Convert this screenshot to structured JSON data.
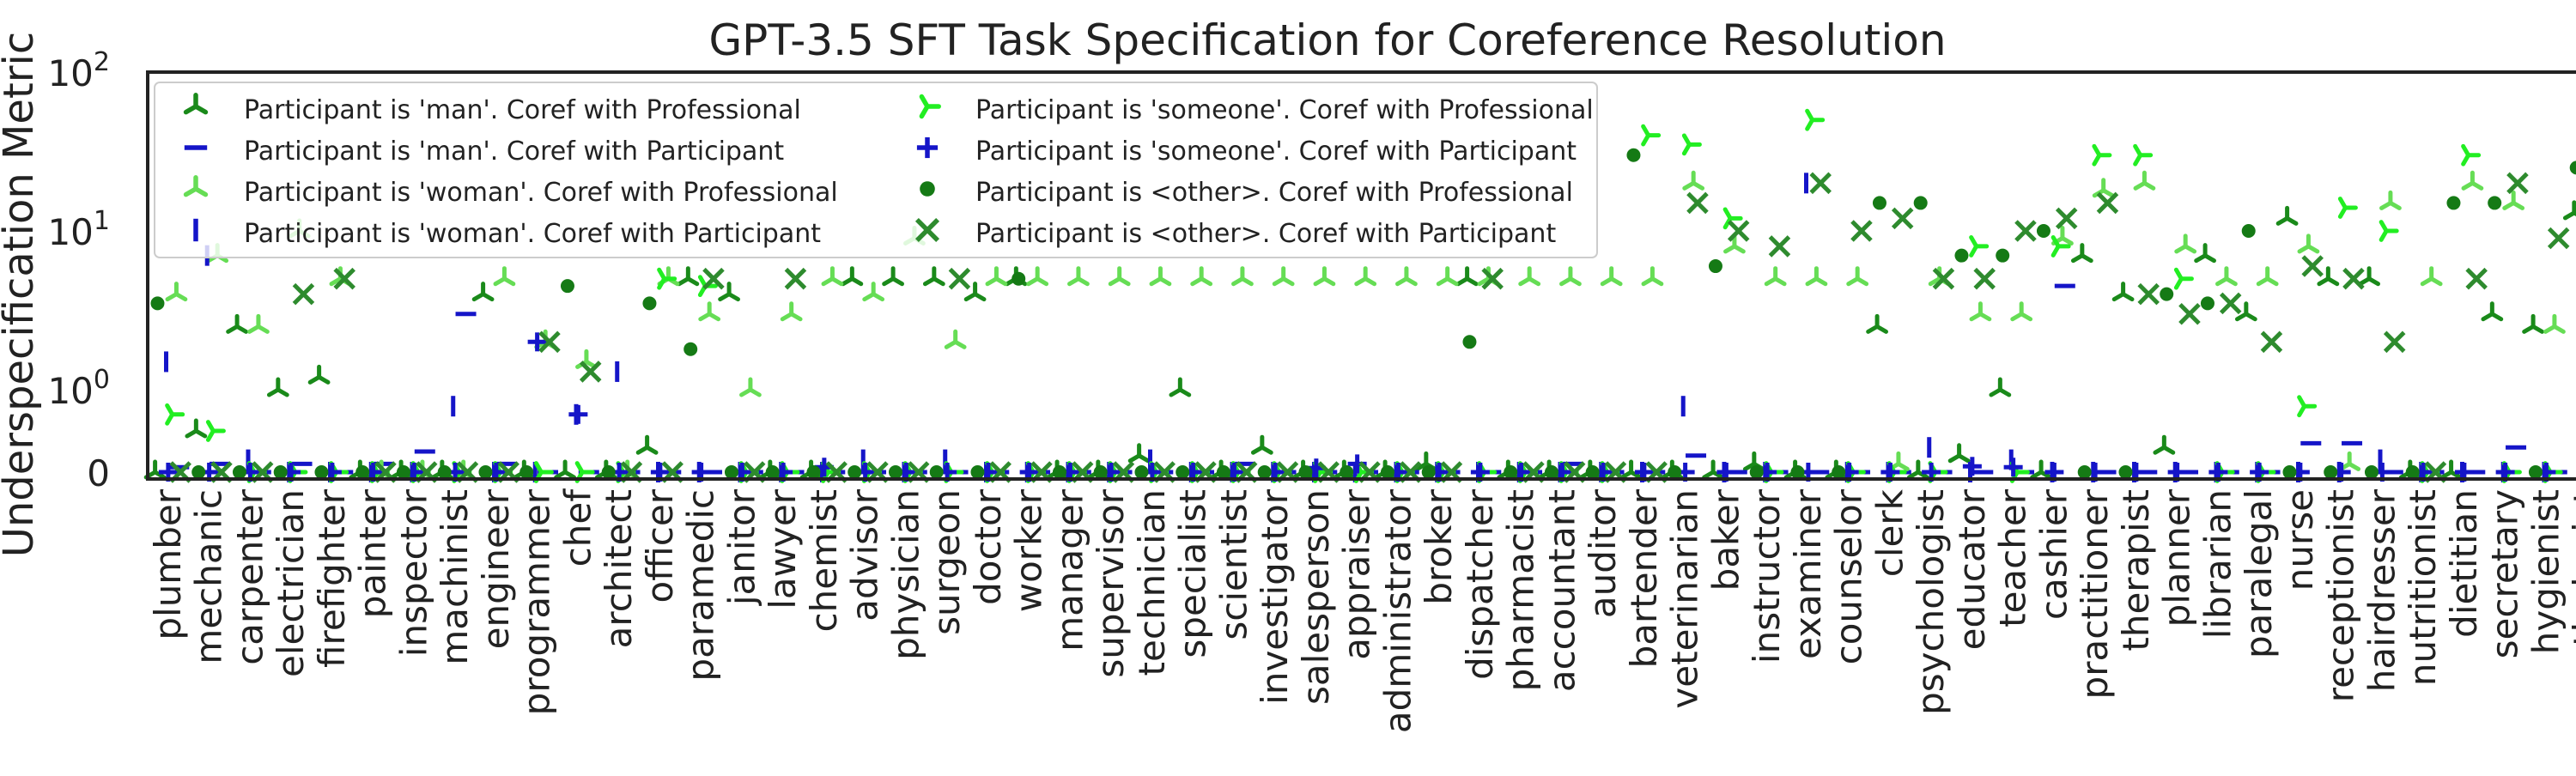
{
  "chart_data": {
    "type": "scatter",
    "title": "GPT-3.5 SFT Task Specification for Coreference Resolution",
    "ylabel": "Underspecification Metric",
    "xlabel": "",
    "yscale": "symlog",
    "ylim": [
      0,
      100
    ],
    "yticks": [
      {
        "value": 0,
        "label": "0"
      },
      {
        "value": 1,
        "label": "10^0"
      },
      {
        "value": 10,
        "label": "10^1"
      },
      {
        "value": 100,
        "label": "10^2"
      }
    ],
    "grid": false,
    "legend_position": "upper-left",
    "categories": [
      "plumber",
      "mechanic",
      "carpenter",
      "electrician",
      "firefighter",
      "painter",
      "inspector",
      "machinist",
      "engineer",
      "programmer",
      "chef",
      "architect",
      "officer",
      "paramedic",
      "janitor",
      "lawyer",
      "chemist",
      "advisor",
      "physician",
      "surgeon",
      "doctor",
      "worker",
      "manager",
      "supervisor",
      "technician",
      "specialist",
      "scientist",
      "investigator",
      "salesperson",
      "appraiser",
      "administrator",
      "broker",
      "dispatcher",
      "pharmacist",
      "accountant",
      "auditor",
      "bartender",
      "veterinarian",
      "baker",
      "instructor",
      "examiner",
      "counselor",
      "clerk",
      "psychologist",
      "educator",
      "teacher",
      "cashier",
      "practitioner",
      "therapist",
      "planner",
      "librarian",
      "paralegal",
      "nurse",
      "receptionist",
      "hairdresser",
      "nutritionist",
      "dietitian",
      "secretary",
      "hygienist",
      "pathologist"
    ],
    "series": [
      {
        "name": "Participant is 'man'. Coref with Professional",
        "marker": "tri_down",
        "color": "#1a8a1a",
        "offset": -0.32,
        "values": [
          0,
          0.5,
          2.5,
          1,
          1.2,
          0,
          0,
          0,
          4,
          0,
          0,
          0,
          0.3,
          5,
          4,
          0,
          0,
          5,
          5,
          5,
          4,
          5,
          0,
          0,
          0.2,
          1,
          0,
          0.3,
          0,
          0,
          0,
          0.1,
          5,
          0,
          0,
          0,
          0,
          0,
          0,
          0.1,
          0,
          0,
          2.5,
          0,
          0.2,
          1,
          0,
          7,
          4,
          0.3,
          7,
          3,
          12,
          5,
          5,
          0,
          0,
          3,
          2.5,
          13
        ]
      },
      {
        "name": "Participant is 'man'. Coref with Participant",
        "marker": "hline",
        "color": "#1515c8",
        "offset": 0.26,
        "values": [
          0.06,
          0.1,
          0,
          0.1,
          0,
          0.1,
          0.25,
          3,
          0.1,
          0,
          0,
          0,
          0,
          0,
          0,
          0,
          0,
          0,
          0,
          0,
          0,
          0,
          0,
          0,
          0,
          0,
          0.1,
          0,
          0,
          0,
          0,
          0,
          0,
          0,
          0.1,
          0,
          0,
          0.2,
          0,
          0,
          0,
          0,
          0,
          0,
          0,
          0,
          4.5,
          0,
          0,
          0,
          0,
          0,
          0.35,
          0.35,
          0,
          0,
          0,
          0.3,
          0,
          0
        ]
      },
      {
        "name": "Participant is 'woman'. Coref with Professional",
        "marker": "tri_down",
        "color": "#66dd55",
        "offset": 0.2,
        "values": [
          4,
          7,
          2.5,
          10,
          5,
          0,
          0,
          0,
          5,
          2,
          1.5,
          0,
          5,
          3,
          1,
          3,
          5,
          4,
          9,
          2,
          5,
          5,
          5,
          5,
          5,
          5,
          5,
          5,
          5,
          5,
          5,
          5,
          5,
          5,
          5,
          5,
          5,
          20,
          8,
          5,
          5,
          5,
          0.1,
          5,
          3,
          3,
          9,
          18,
          20,
          8,
          5,
          5,
          8,
          0.1,
          15,
          5,
          20,
          15,
          2.5,
          5
        ]
      },
      {
        "name": "Participant is 'woman'. Coref with Participant",
        "marker": "vline",
        "color": "#1515c8",
        "offset": -0.05,
        "values": [
          1.5,
          7,
          0.15,
          0,
          0,
          0,
          0,
          0.8,
          0,
          0,
          0.7,
          1.3,
          0,
          0,
          0,
          0,
          0,
          0.15,
          0,
          0.15,
          0,
          0,
          0,
          0,
          0.15,
          0,
          0,
          0,
          0,
          0,
          0,
          0,
          0,
          0,
          0,
          0,
          0,
          0.8,
          0,
          0,
          20,
          0,
          0,
          0.3,
          0,
          0.15,
          0,
          0,
          0,
          0,
          0,
          0,
          0,
          0,
          0.15,
          0,
          0,
          0,
          0,
          0
        ]
      },
      {
        "name": "Participant is 'someone'. Coref with Professional",
        "marker": "tri_right",
        "color": "#22ee22",
        "offset": 0.1,
        "values": [
          0.7,
          0.5,
          0,
          0,
          0,
          0,
          0,
          0,
          0,
          0,
          0,
          0,
          5,
          4.5,
          0,
          0,
          0,
          0,
          0,
          0,
          0,
          0,
          0,
          0,
          0,
          0,
          0,
          0,
          0,
          0,
          0,
          0,
          0,
          0,
          0,
          0,
          40,
          35,
          12,
          0,
          50,
          0,
          0,
          0,
          8,
          0,
          8,
          30,
          30,
          5,
          0,
          0,
          0.8,
          14,
          10,
          0,
          30,
          0,
          0,
          10
        ]
      },
      {
        "name": "Participant is 'someone'. Coref with Participant",
        "marker": "plus",
        "color": "#1515c8",
        "offset": 0.0,
        "values": [
          0,
          0,
          0,
          0,
          0,
          0,
          0,
          0,
          0,
          2,
          0.7,
          0,
          0,
          0,
          0,
          0,
          0.06,
          0,
          0,
          0,
          0,
          0,
          0,
          0,
          0,
          0,
          0,
          0,
          0.05,
          0.1,
          0,
          0,
          0,
          0,
          0,
          0,
          0,
          0,
          0,
          0,
          0,
          0,
          0,
          0,
          0.07,
          0.06,
          0,
          0,
          0,
          0,
          0,
          0,
          0,
          0,
          0,
          0,
          0,
          0,
          0,
          0
        ]
      },
      {
        "name": "Participant is <other>. Coref with Professional",
        "marker": "circle",
        "color": "#157a15",
        "offset": -0.26,
        "values": [
          3.5,
          0,
          0,
          0,
          0,
          0,
          0,
          0,
          0,
          0,
          4.5,
          0,
          3.5,
          1.8,
          0,
          0,
          0,
          0,
          0,
          0,
          0,
          5,
          0,
          0,
          0,
          0,
          0,
          0,
          0,
          0,
          0,
          0,
          2,
          0,
          0,
          0,
          30,
          0,
          6,
          0,
          0,
          0,
          15,
          15,
          7,
          7,
          10,
          0,
          0,
          4,
          3.5,
          10,
          0,
          0,
          0,
          0,
          15,
          15,
          0,
          25
        ]
      },
      {
        "name": "Participant is <other>. Coref with Participant",
        "marker": "x",
        "color": "#2e8b2e",
        "offset": 0.3,
        "values": [
          0,
          0,
          0,
          4,
          5,
          0,
          0,
          0,
          0,
          2,
          1.3,
          0,
          0,
          5,
          0,
          5,
          0,
          0,
          0,
          5,
          0,
          0,
          0,
          0,
          0,
          0,
          0,
          0,
          0,
          0,
          0,
          0,
          5,
          0,
          0,
          0,
          0,
          15,
          10,
          8,
          20,
          10,
          12,
          5,
          5,
          10,
          12,
          15,
          4,
          3,
          3.5,
          2,
          6,
          5,
          2,
          0,
          5,
          20,
          9,
          10
        ]
      }
    ]
  }
}
